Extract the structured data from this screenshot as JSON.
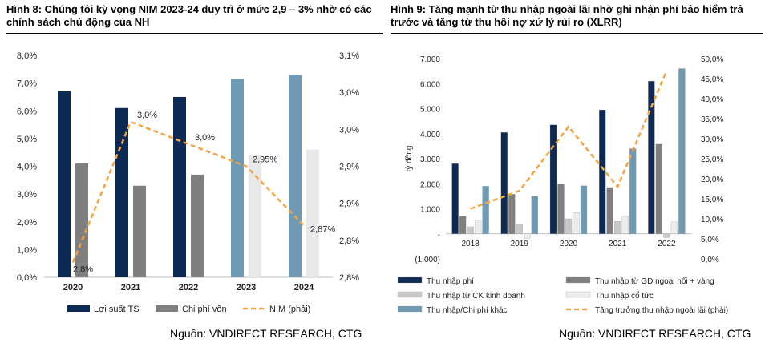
{
  "left": {
    "title": "Hình 8: Chúng tôi kỳ vọng NIM 2023-24 duy trì ở mức 2,9 – 3% nhờ có các chính sách chủ động của NH",
    "source": "Nguồn: VNDIRECT RESEARCH, CTG"
  },
  "right": {
    "title": "Hình 9: Tăng mạnh từ thu nhập ngoài lãi nhờ ghi nhận phí bảo hiểm trả trước và tăng từ thu hồi nợ xử lý rủi ro (XLRR)",
    "source": "Nguồn: VNDIRECT RESEARCH, CTG"
  },
  "chart_data": [
    {
      "type": "bar",
      "categories": [
        "2020",
        "2021",
        "2022",
        "2023",
        "2024"
      ],
      "ylim": [
        0,
        8
      ],
      "y2lim": [
        2.8,
        3.1
      ],
      "y_ticks": [
        "0,0%",
        "1,0%",
        "2,0%",
        "3,0%",
        "4,0%",
        "5,0%",
        "6,0%",
        "7,0%",
        "8,0%"
      ],
      "y2_ticks": [
        "2,8%",
        "2,8%",
        "2,9%",
        "2,9%",
        "3,0%",
        "3,0%",
        "3,1%"
      ],
      "series": [
        {
          "name": "Lợi suất TS",
          "kind": "bar",
          "values": [
            6.7,
            6.1,
            6.5,
            7.15,
            7.3
          ],
          "colors": [
            "#0d2a54",
            "#0d2a54",
            "#0d2a54",
            "#6f9ab3",
            "#6f9ab3"
          ]
        },
        {
          "name": "Chi phí vốn",
          "kind": "bar",
          "values": [
            4.1,
            3.3,
            3.7,
            4.4,
            4.6
          ],
          "colors": [
            "#7f7f7f",
            "#7f7f7f",
            "#7f7f7f",
            "#e8e8e8",
            "#e8e8e8"
          ]
        },
        {
          "name": "NIM (phải)",
          "kind": "line",
          "axis": "right",
          "values": [
            2.82,
            3.01,
            2.98,
            2.95,
            2.87
          ],
          "labels": [
            "2,8%",
            "3,0%",
            "3,0%",
            "2,95%",
            "2,87%"
          ],
          "color": "#f4a442"
        }
      ]
    },
    {
      "type": "bar",
      "categories": [
        "2018",
        "2019",
        "2020",
        "2021",
        "2022"
      ],
      "ylabel": "tỷ đồng",
      "ylim": [
        -1000,
        7000
      ],
      "y2lim": [
        0,
        50
      ],
      "y_ticks": [
        "(1.000)",
        "-",
        "1.000",
        "2.000",
        "3.000",
        "4.000",
        "5.000",
        "6.000",
        "7.000"
      ],
      "y2_ticks": [
        "0,0%",
        "5,0%",
        "10,0%",
        "15,0%",
        "20,0%",
        "25,0%",
        "30,0%",
        "35,0%",
        "40,0%",
        "45,0%",
        "50,0%"
      ],
      "series": [
        {
          "name": "Thu nhập phí",
          "kind": "bar",
          "values": [
            2800,
            4050,
            4350,
            4950,
            6100
          ],
          "color": "#0d2a54"
        },
        {
          "name": "Thu nhập từ GD ngoại hối + vàng",
          "kind": "bar",
          "values": [
            700,
            1580,
            2000,
            1850,
            3580
          ],
          "color": "#7f7f7f"
        },
        {
          "name": "Thu nhập từ CK kinh doanh",
          "kind": "bar",
          "values": [
            280,
            380,
            600,
            500,
            -150
          ],
          "color": "#c8c8c8"
        },
        {
          "name": "Thu nhập cổ tức",
          "kind": "bar",
          "values": [
            550,
            -180,
            850,
            700,
            480
          ],
          "color": "#ececec"
        },
        {
          "name": "Thu nhập/Chi phí khác",
          "kind": "bar",
          "values": [
            1900,
            1500,
            1920,
            3400,
            6600
          ],
          "color": "#6f9ab3"
        },
        {
          "name": "Tăng trưởng thu nhập ngoài lãi (phải)",
          "kind": "line",
          "axis": "right",
          "values": [
            12.5,
            17,
            33,
            18,
            47
          ],
          "color": "#f4a442"
        }
      ]
    }
  ]
}
